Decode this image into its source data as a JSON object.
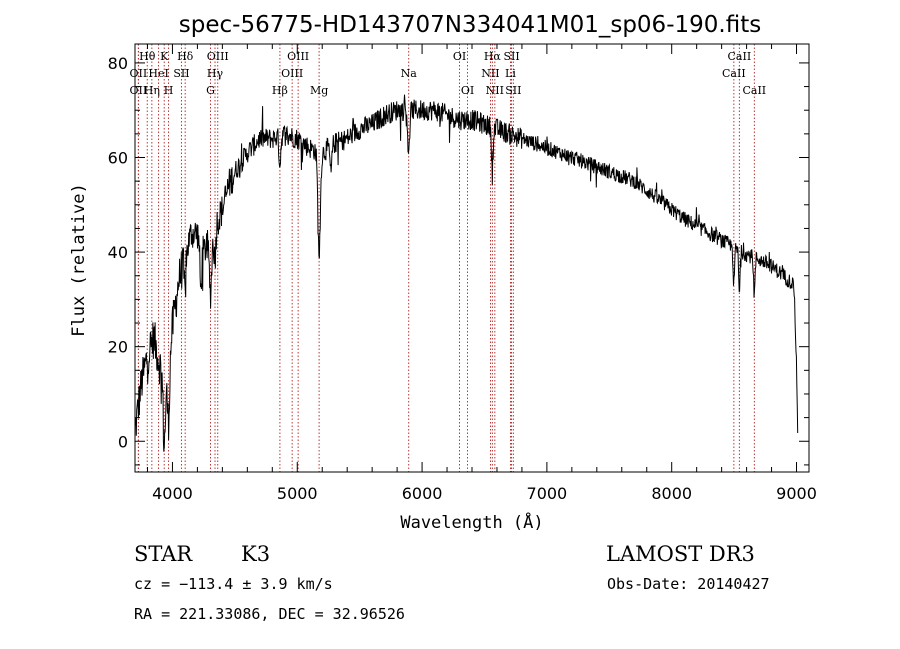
{
  "chart_data": {
    "type": "line",
    "title": "spec-56775-HD143707N334041M01_sp06-190.fits",
    "xlabel": "Wavelength (Å)",
    "ylabel": "Flux (relative)",
    "xlim": [
      3700,
      9100
    ],
    "ylim": [
      -6.5,
      84
    ],
    "x_ticks": [
      4000,
      5000,
      6000,
      7000,
      8000,
      9000
    ],
    "y_ticks": [
      0,
      20,
      40,
      60,
      80
    ],
    "grid": false,
    "line_color": "#000000",
    "marker_color": "#b22222",
    "continuum": [
      [
        3700,
        2
      ],
      [
        3750,
        12
      ],
      [
        3800,
        18
      ],
      [
        3850,
        22
      ],
      [
        3900,
        16
      ],
      [
        3950,
        12
      ],
      [
        4000,
        24
      ],
      [
        4050,
        34
      ],
      [
        4100,
        39
      ],
      [
        4150,
        44
      ],
      [
        4200,
        44
      ],
      [
        4250,
        40
      ],
      [
        4300,
        43
      ],
      [
        4350,
        46
      ],
      [
        4400,
        49
      ],
      [
        4450,
        54
      ],
      [
        4500,
        57
      ],
      [
        4600,
        61
      ],
      [
        4700,
        64
      ],
      [
        4800,
        64
      ],
      [
        4900,
        65
      ],
      [
        5000,
        64
      ],
      [
        5100,
        62
      ],
      [
        5200,
        61
      ],
      [
        5300,
        63
      ],
      [
        5400,
        64
      ],
      [
        5500,
        66
      ],
      [
        5600,
        67
      ],
      [
        5700,
        69
      ],
      [
        5800,
        70
      ],
      [
        5900,
        70
      ],
      [
        6000,
        70
      ],
      [
        6100,
        70
      ],
      [
        6200,
        69
      ],
      [
        6300,
        68
      ],
      [
        6400,
        68
      ],
      [
        6500,
        67
      ],
      [
        6600,
        66
      ],
      [
        6700,
        65
      ],
      [
        6800,
        64
      ],
      [
        6900,
        63
      ],
      [
        7000,
        62
      ],
      [
        7100,
        61
      ],
      [
        7200,
        60
      ],
      [
        7300,
        59
      ],
      [
        7400,
        58
      ],
      [
        7500,
        57
      ],
      [
        7600,
        56
      ],
      [
        7700,
        55
      ],
      [
        7800,
        53
      ],
      [
        7900,
        51
      ],
      [
        8000,
        49
      ],
      [
        8100,
        47
      ],
      [
        8200,
        45.5
      ],
      [
        8300,
        44
      ],
      [
        8400,
        42.5
      ],
      [
        8500,
        41
      ],
      [
        8600,
        39.5
      ],
      [
        8700,
        38.5
      ],
      [
        8800,
        37
      ],
      [
        8900,
        35
      ],
      [
        8980,
        33
      ],
      [
        9000,
        16
      ],
      [
        9010,
        1
      ]
    ],
    "absorption_features": [
      {
        "center": 3934,
        "depth": 14,
        "width": 12
      },
      {
        "center": 3969,
        "depth": 12,
        "width": 12
      },
      {
        "center": 4101,
        "depth": 8,
        "width": 10
      },
      {
        "center": 4227,
        "depth": 10,
        "width": 10
      },
      {
        "center": 4305,
        "depth": 12,
        "width": 14
      },
      {
        "center": 4340,
        "depth": 7,
        "width": 10
      },
      {
        "center": 4861,
        "depth": 6,
        "width": 10
      },
      {
        "center": 5175,
        "depth": 22,
        "width": 14
      },
      {
        "center": 5270,
        "depth": 6,
        "width": 10
      },
      {
        "center": 5893,
        "depth": 10,
        "width": 10
      },
      {
        "center": 6563,
        "depth": 10,
        "width": 8
      },
      {
        "center": 8498,
        "depth": 8,
        "width": 8
      },
      {
        "center": 8542,
        "depth": 9,
        "width": 8
      },
      {
        "center": 8662,
        "depth": 8,
        "width": 8
      }
    ],
    "spectral_lines": [
      {
        "label": "Hθ",
        "x": 3798,
        "row": 0
      },
      {
        "label": "OII",
        "x": 3727,
        "row": 1
      },
      {
        "label": "OII",
        "x": 3727,
        "row": 2
      },
      {
        "label": "Hη",
        "x": 3835,
        "row": 2
      },
      {
        "label": "K",
        "x": 3934,
        "row": 0
      },
      {
        "label": "HeI",
        "x": 3889,
        "row": 1
      },
      {
        "label": "H",
        "x": 3969,
        "row": 2
      },
      {
        "label": "SII",
        "x": 4072,
        "row": 1
      },
      {
        "label": "Hδ",
        "x": 4102,
        "row": 0
      },
      {
        "label": "OIII",
        "x": 4363,
        "row": 0
      },
      {
        "label": "Hγ",
        "x": 4341,
        "row": 1
      },
      {
        "label": "G",
        "x": 4305,
        "row": 2
      },
      {
        "label": "Hβ",
        "x": 4861,
        "row": 2
      },
      {
        "label": "OIII",
        "x": 4959,
        "row": 1
      },
      {
        "label": "OIII",
        "x": 5007,
        "row": 0
      },
      {
        "label": "Mg",
        "x": 5175,
        "row": 2
      },
      {
        "label": "Na",
        "x": 5893,
        "row": 1
      },
      {
        "label": "OI",
        "x": 6300,
        "row": 0
      },
      {
        "label": "OI",
        "x": 6364,
        "row": 2
      },
      {
        "label": "Hα",
        "x": 6563,
        "row": 0
      },
      {
        "label": "NII",
        "x": 6548,
        "row": 1
      },
      {
        "label": "NII",
        "x": 6583,
        "row": 2
      },
      {
        "label": "SII",
        "x": 6717,
        "row": 0
      },
      {
        "label": "Li",
        "x": 6708,
        "row": 1
      },
      {
        "label": "SII",
        "x": 6731,
        "row": 2
      },
      {
        "label": "CaII",
        "x": 8542,
        "row": 0
      },
      {
        "label": "CaII",
        "x": 8498,
        "row": 1
      },
      {
        "label": "CaII",
        "x": 8662,
        "row": 2
      }
    ]
  },
  "info": {
    "object_class": "STAR",
    "subclass": "K3",
    "survey": "LAMOST DR3",
    "redshift": "cz = −113.4 ± 3.9 km/s",
    "obs_date": "Obs-Date: 20140427",
    "coords": "RA = 221.33086, DEC =  32.96526"
  }
}
